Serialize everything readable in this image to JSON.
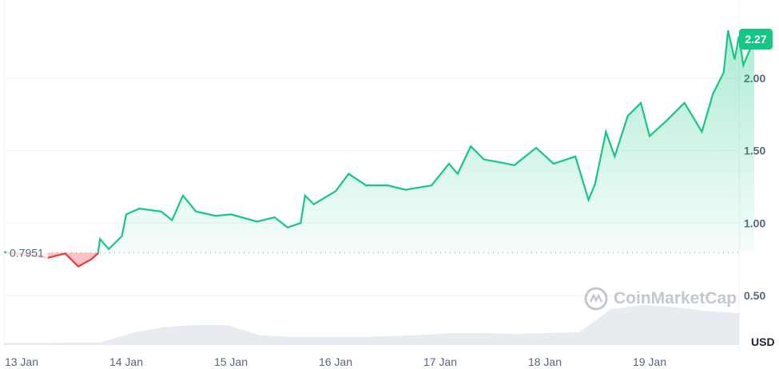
{
  "chart_data": {
    "type": "line",
    "title": "",
    "xlabel": "",
    "ylabel": "",
    "currency_label": "USD",
    "x_ticks": [
      "13 Jan",
      "14 Jan",
      "15 Jan",
      "16 Jan",
      "17 Jan",
      "18 Jan",
      "19 Jan"
    ],
    "y_ticks": [
      "0.50",
      "1.00",
      "1.50",
      "2.00"
    ],
    "y_tick_values": [
      0.5,
      1.0,
      1.5,
      2.0
    ],
    "ylim": [
      0.2,
      2.35
    ],
    "grid": true,
    "reference_value": 0.7951,
    "reference_label": "0.7951",
    "current_value": 2.27,
    "current_label": "2.27",
    "colors": {
      "up": "#16c784",
      "down": "#ea3943",
      "grid": "#eff2f5",
      "axis_text": "#58667e",
      "badge": "#16c784"
    },
    "series": [
      {
        "x": [
          "12 Jan 20:00",
          "13 Jan 06:00",
          "13 Jan 10:00",
          "13 Jan 13:00",
          "13 Jan 16:00",
          "13 Jan 17:30",
          "13 Jan 18:00",
          "13 Jan 20:00",
          "13 Jan 23:00",
          "14 Jan 00:00",
          "14 Jan 03:00",
          "14 Jan 08:00",
          "14 Jan 10:30",
          "14 Jan 13:00",
          "14 Jan 16:00",
          "14 Jan 20:30",
          "15 Jan 00:00",
          "15 Jan 06:00",
          "15 Jan 10:00",
          "15 Jan 13:00",
          "15 Jan 16:00",
          "15 Jan 17:00",
          "15 Jan 19:00",
          "16 Jan 00:00",
          "16 Jan 03:00",
          "16 Jan 07:00",
          "16 Jan 12:00",
          "16 Jan 16:00",
          "16 Jan 22:00",
          "17 Jan 02:00",
          "17 Jan 04:00",
          "17 Jan 07:00",
          "17 Jan 10:00",
          "17 Jan 17:00",
          "17 Jan 22:00",
          "18 Jan 02:00",
          "18 Jan 07:00",
          "18 Jan 10:00",
          "18 Jan 11:30",
          "18 Jan 14:00",
          "18 Jan 16:00",
          "18 Jan 19:00",
          "18 Jan 22:00",
          "19 Jan 00:00",
          "19 Jan 04:00",
          "19 Jan 08:00",
          "19 Jan 12:00",
          "19 Jan 14:30",
          "19 Jan 17:00",
          "19 Jan 18:00",
          "19 Jan 19:30",
          "19 Jan 20:30",
          "19 Jan 21:30",
          "20 Jan 00:00"
        ],
        "values": [
          0.8,
          0.76,
          0.79,
          0.7,
          0.75,
          0.79,
          0.89,
          0.82,
          0.91,
          1.06,
          1.1,
          1.08,
          1.02,
          1.19,
          1.08,
          1.05,
          1.06,
          1.01,
          1.04,
          0.97,
          1.0,
          1.19,
          1.13,
          1.22,
          1.34,
          1.26,
          1.26,
          1.23,
          1.26,
          1.41,
          1.34,
          1.53,
          1.44,
          1.4,
          1.52,
          1.41,
          1.46,
          1.16,
          1.27,
          1.63,
          1.46,
          1.74,
          1.83,
          1.6,
          1.71,
          1.83,
          1.63,
          1.89,
          2.04,
          2.33,
          2.13,
          2.29,
          2.09,
          2.27
        ]
      }
    ],
    "volume_relative": [
      0.05,
      0.05,
      0.06,
      0.06,
      0.3,
      0.45,
      0.5,
      0.5,
      0.25,
      0.2,
      0.2,
      0.2,
      0.22,
      0.25,
      0.3,
      0.3,
      0.28,
      0.3,
      0.32,
      0.9,
      1.0,
      0.95,
      0.85,
      0.8
    ]
  },
  "watermark": "CoinMarketCap"
}
